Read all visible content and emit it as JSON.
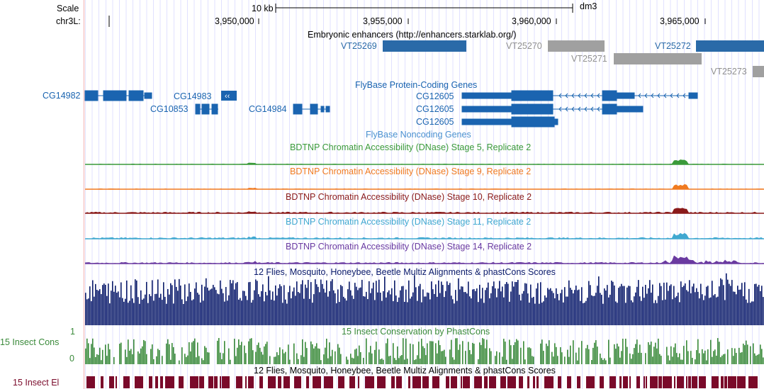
{
  "ruler": {
    "scale_label": "Scale",
    "chrom_label": "chr3L:",
    "scale_bar_text": "10 kb",
    "assembly": "dm3",
    "positions": [
      "3,950,000",
      "3,955,000",
      "3,960,000",
      "3,965,000"
    ]
  },
  "enhancers": {
    "title": "Embryonic enhancers (http://enhancers.starklab.org/)",
    "items": [
      {
        "name": "VT25269",
        "color": "#2a6aa8"
      },
      {
        "name": "VT25270",
        "color": "#a0a0a0"
      },
      {
        "name": "VT25271",
        "color": "#a0a0a0"
      },
      {
        "name": "VT25272",
        "color": "#2a6aa8"
      },
      {
        "name": "VT25273",
        "color": "#a0a0a0"
      }
    ]
  },
  "genes": {
    "title": "FlyBase Protein-Coding Genes",
    "color": "#1a64b0",
    "left_names": [
      "CG14982",
      "CG14983",
      "CG10853",
      "CG14984"
    ],
    "transcripts": [
      "CG12605",
      "CG12605",
      "CG12605"
    ]
  },
  "noncoding": {
    "title": "FlyBase Noncoding Genes"
  },
  "dnase": [
    {
      "title": "BDTNP Chromatin Accessibility (DNase) Stage 5, Replicate 2",
      "color": "#3a9a3a"
    },
    {
      "title": "BDTNP Chromatin Accessibility (DNase) Stage 9, Replicate 2",
      "color": "#f07a20"
    },
    {
      "title": "BDTNP Chromatin Accessibility (DNase) Stage 10, Replicate 2",
      "color": "#8a1a1a"
    },
    {
      "title": "BDTNP Chromatin Accessibility (DNase) Stage 11, Replicate 2",
      "color": "#40a8d0"
    },
    {
      "title": "BDTNP Chromatin Accessibility (DNase) Stage 14, Replicate 2",
      "color": "#6a3aa0"
    }
  ],
  "multiz": {
    "title": "12 Flies, Mosquito, Honeybee, Beetle Multiz Alignments & phastCons Scores",
    "color": "#0a1a6a"
  },
  "phastcons": {
    "title": "15 Insect Conservation by PhastCons",
    "label": "15 Insect Cons",
    "max_label": "1",
    "min_label": "0",
    "color": "#3a8a3a"
  },
  "elements": {
    "title": "12 Flies, Mosquito, Honeybee, Beetle Multiz Alignments & phastCons Scores",
    "label": "15 Insect El",
    "color": "#7a0a2a"
  }
}
